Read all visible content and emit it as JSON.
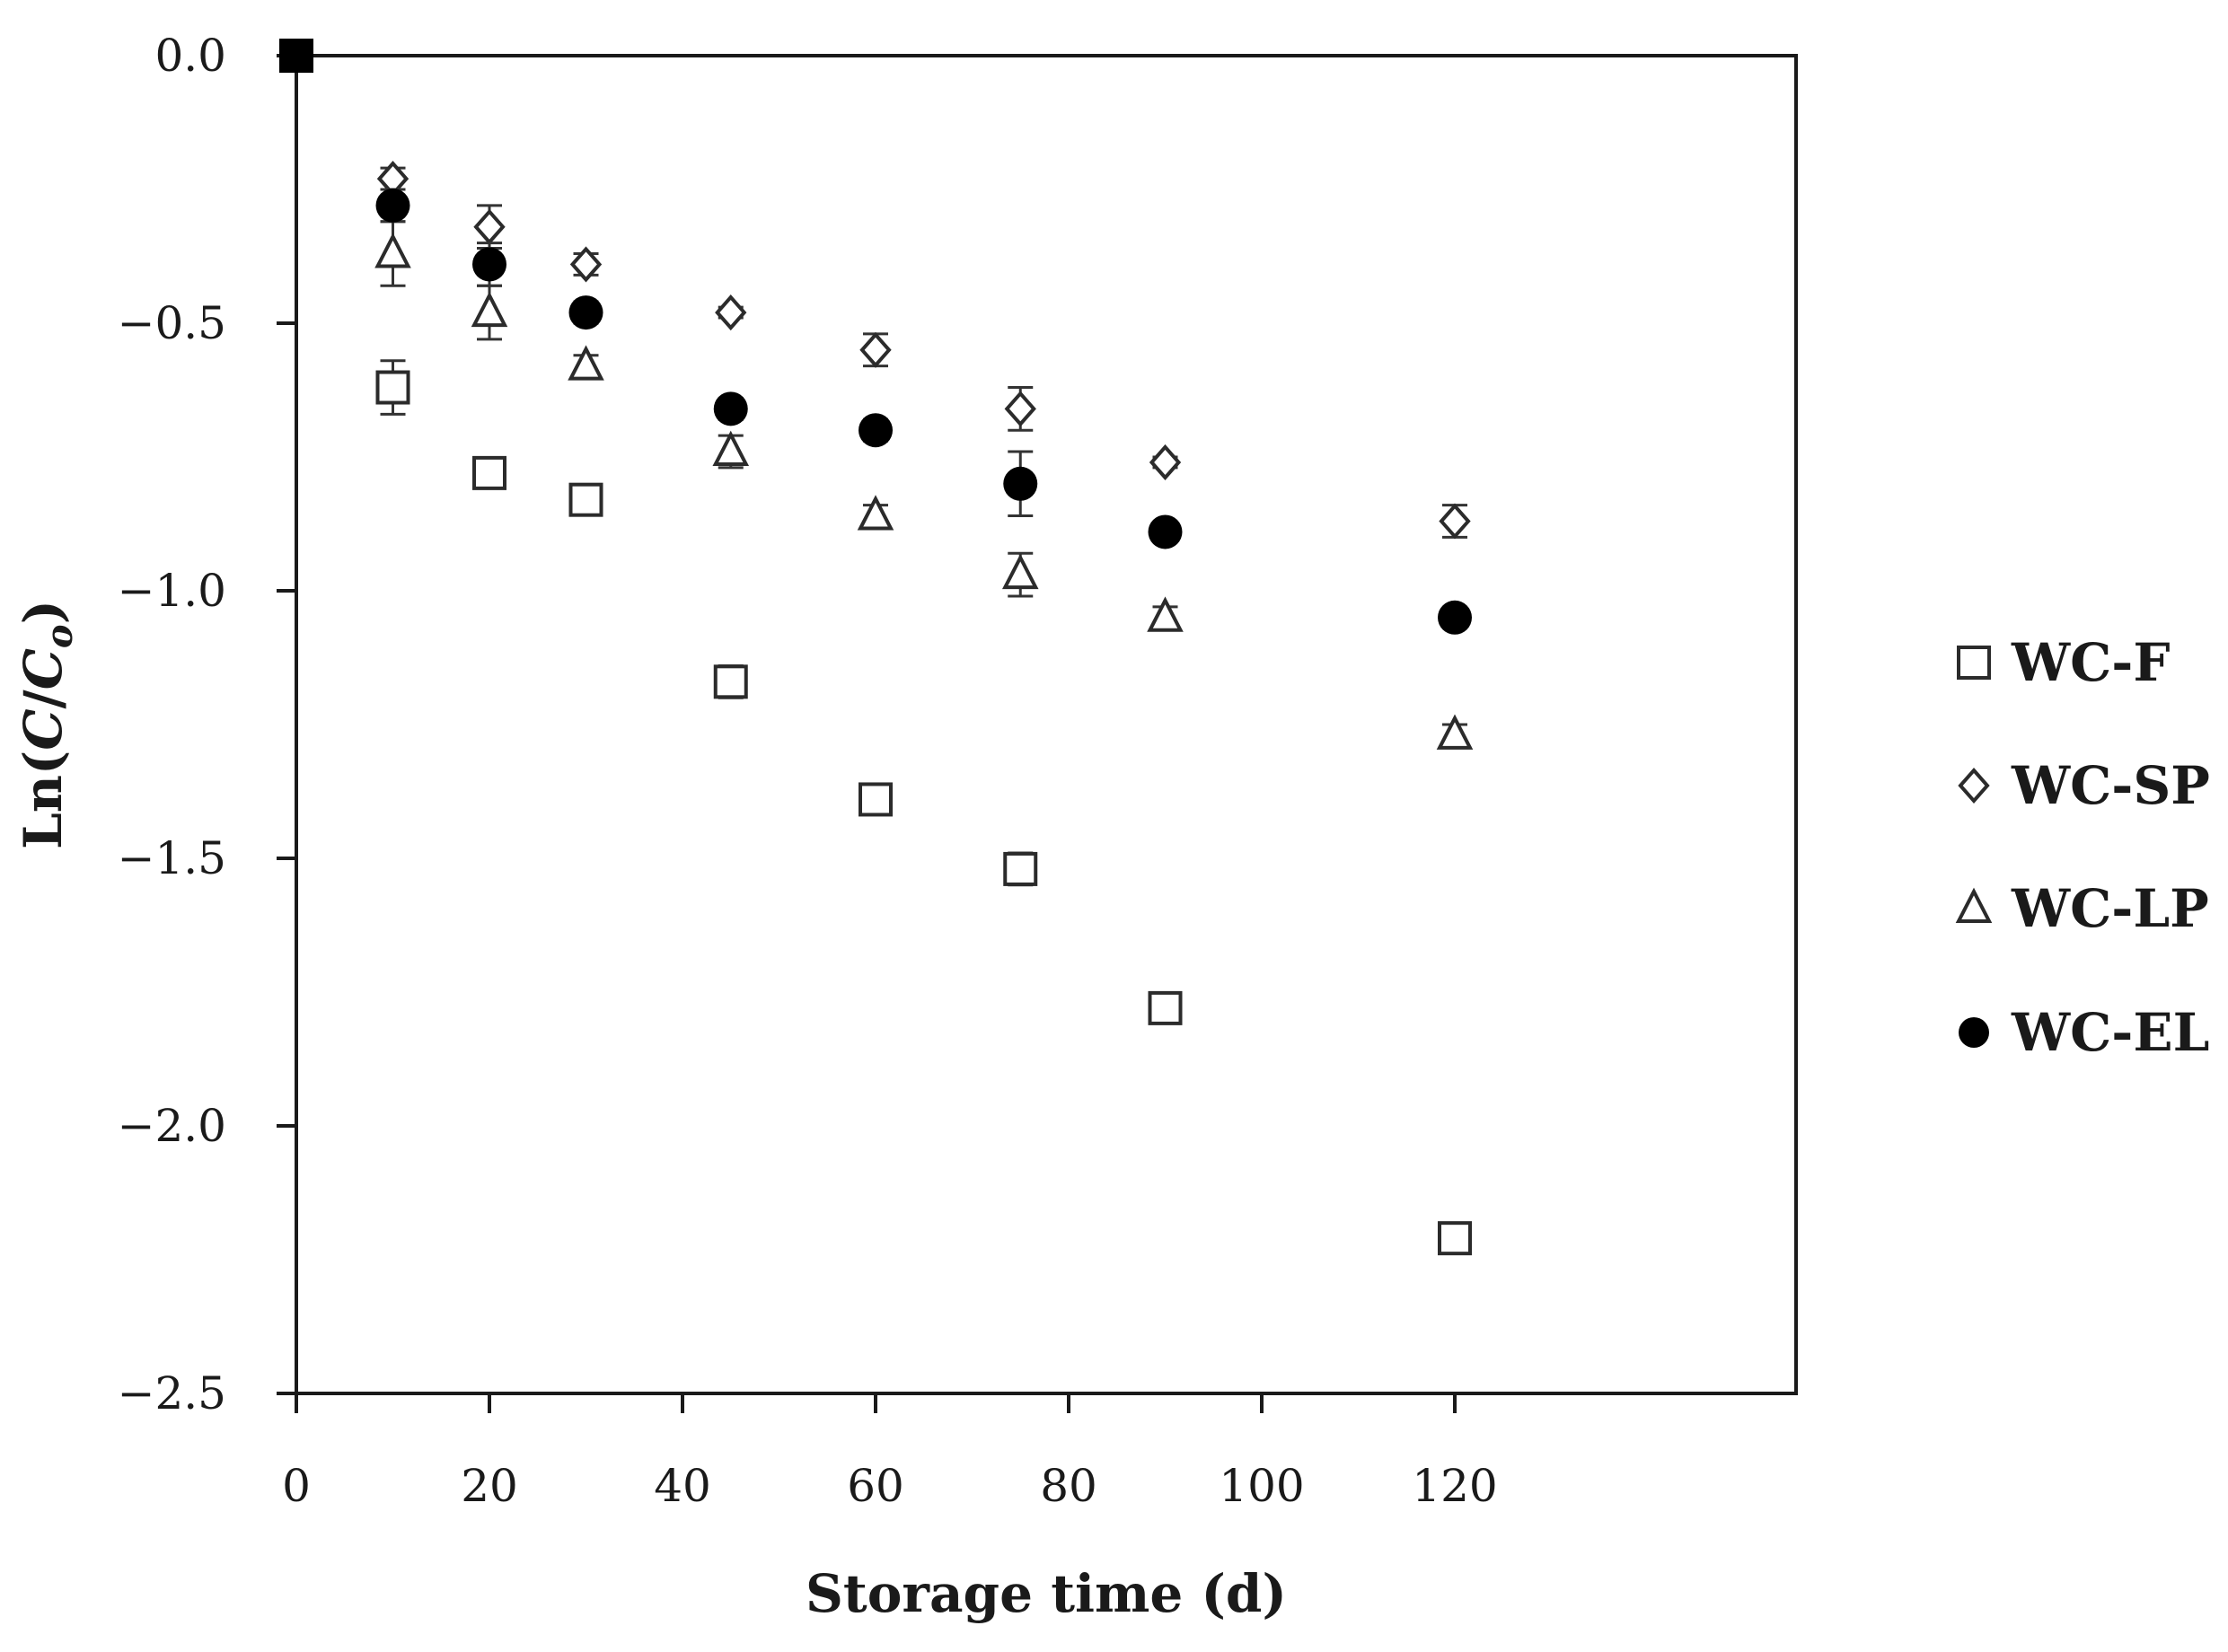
{
  "chart_data": {
    "type": "scatter",
    "title": "",
    "xlabel": "Storage time (d)",
    "ylabel": {
      "prefix": "Ln(",
      "c": "C",
      "slash": "/",
      "c0": "C",
      "c0_sub": "o",
      "suffix": ")"
    },
    "xlim": [
      0,
      130
    ],
    "ylim": [
      -2.5,
      0.0
    ],
    "x_ticks": [
      0,
      20,
      40,
      60,
      80,
      100,
      120
    ],
    "x_tick_labels": [
      "0",
      "20",
      "40",
      "60",
      "80",
      "100",
      "120"
    ],
    "y_ticks": [
      0.0,
      -0.5,
      -1.0,
      -1.5,
      -2.0,
      -2.5
    ],
    "y_tick_labels": [
      "0.0",
      "−0.5",
      "−1.0",
      "−1.5",
      "−2.0",
      "−2.5"
    ],
    "grid": false,
    "legend_position": "right",
    "origin_point": {
      "x": 0,
      "y": 0.0
    },
    "series": [
      {
        "name": "WC-F",
        "marker": "square-open",
        "x": [
          10,
          20,
          30,
          45,
          60,
          75,
          90,
          120
        ],
        "y": [
          -0.62,
          -0.78,
          -0.83,
          -1.17,
          -1.39,
          -1.52,
          -1.78,
          -2.21
        ],
        "err": [
          0.05,
          0.02,
          0.02,
          0.03,
          0.02,
          0.03,
          0.02,
          0.02
        ]
      },
      {
        "name": "WC-SP",
        "marker": "diamond-open",
        "x": [
          10,
          20,
          30,
          45,
          60,
          75,
          90,
          120
        ],
        "y": [
          -0.23,
          -0.32,
          -0.39,
          -0.48,
          -0.55,
          -0.66,
          -0.76,
          -0.87
        ],
        "err": [
          0.02,
          0.04,
          0.02,
          0.01,
          0.03,
          0.04,
          0.01,
          0.03
        ]
      },
      {
        "name": "WC-LP",
        "marker": "triangle-open",
        "x": [
          10,
          20,
          30,
          45,
          60,
          75,
          90,
          120
        ],
        "y": [
          -0.37,
          -0.48,
          -0.58,
          -0.74,
          -0.86,
          -0.97,
          -1.05,
          -1.27
        ],
        "err": [
          0.06,
          0.05,
          0.02,
          0.03,
          0.02,
          0.04,
          0.02,
          0.02
        ]
      },
      {
        "name": "WC-EL",
        "marker": "circle-filled",
        "x": [
          10,
          20,
          30,
          45,
          60,
          75,
          90,
          120
        ],
        "y": [
          -0.28,
          -0.39,
          -0.48,
          -0.66,
          -0.7,
          -0.8,
          -0.89,
          -1.05
        ],
        "err": [
          0.03,
          0.04,
          0.02,
          0.02,
          0.02,
          0.06,
          0.01,
          0.01
        ]
      }
    ]
  }
}
